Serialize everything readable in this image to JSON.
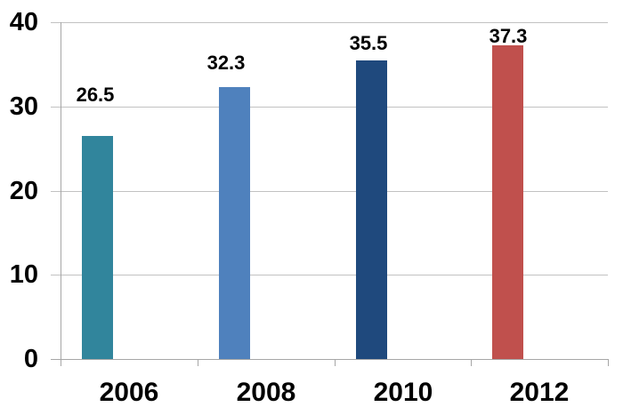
{
  "chart_data": {
    "type": "bar",
    "title": "",
    "xlabel": "",
    "ylabel": "",
    "categories": [
      "2006",
      "2008",
      "2010",
      "2012"
    ],
    "values": [
      26.5,
      32.3,
      35.5,
      37.3
    ],
    "data_labels": [
      "26.5",
      "32.3",
      "35.5",
      "37.3"
    ],
    "bar_colors": [
      "#31859C",
      "#4F81BD",
      "#1F497D",
      "#C0504D"
    ],
    "ylim": [
      0,
      40
    ],
    "y_ticks": [
      0,
      10,
      20,
      30,
      40
    ],
    "grid": "horizontal-major",
    "legend": "none",
    "background_color": "#FFFFFF",
    "gridline_color": "#C2C2C2",
    "axis_color": "#A6A6A6",
    "text_color": "#000000"
  }
}
